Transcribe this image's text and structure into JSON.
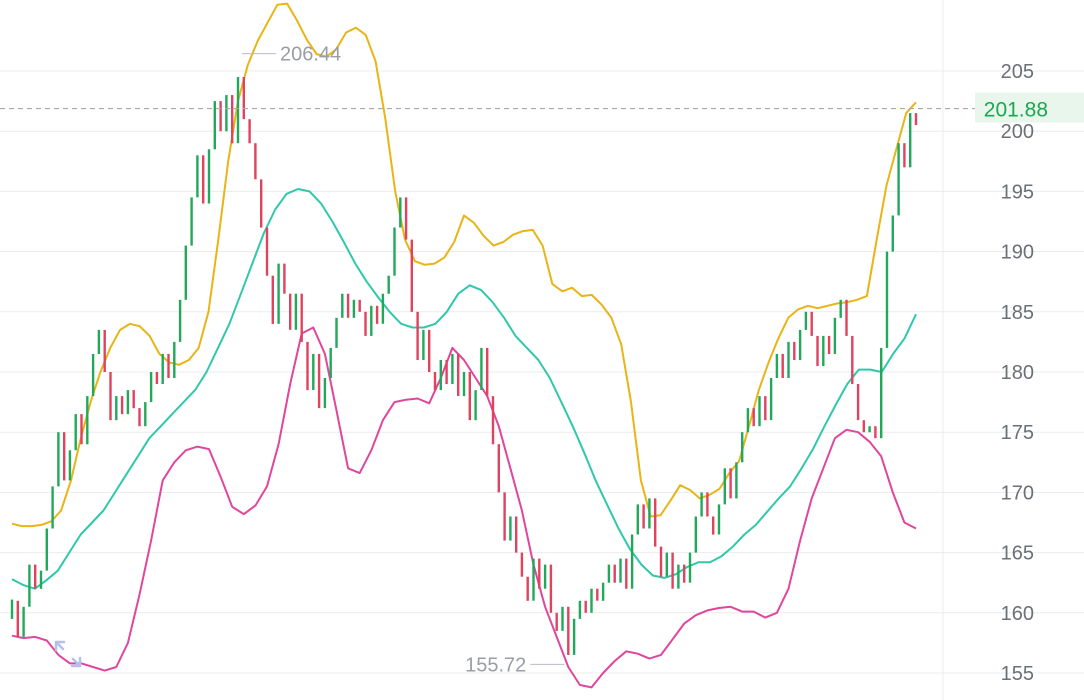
{
  "chart_data": {
    "type": "candlestick",
    "y_axis": {
      "range": [
        153,
        211
      ],
      "ticks": [
        155,
        160,
        165,
        170,
        175,
        180,
        185,
        190,
        195,
        200,
        205
      ],
      "position": "right"
    },
    "grid": true,
    "last_price": {
      "value": 201.88,
      "label": "201.88"
    },
    "annotations": [
      {
        "label": "206.44",
        "value": 206.44,
        "bar_index": 39
      },
      {
        "label": "155.72",
        "value": 155.72,
        "bar_index": 96
      }
    ],
    "candles": [
      {
        "o": 159.5,
        "c": 161.1
      },
      {
        "o": 161.0,
        "c": 158.0
      },
      {
        "o": 158.0,
        "c": 160.5
      },
      {
        "o": 160.5,
        "c": 164.0
      },
      {
        "o": 164.0,
        "c": 162.0
      },
      {
        "o": 162.0,
        "c": 163.5
      },
      {
        "o": 163.5,
        "c": 167.0
      },
      {
        "o": 167.0,
        "c": 170.5
      },
      {
        "o": 170.5,
        "c": 175.0
      },
      {
        "o": 175.0,
        "c": 171.0
      },
      {
        "o": 171.0,
        "c": 173.5
      },
      {
        "o": 173.5,
        "c": 176.5
      },
      {
        "o": 176.5,
        "c": 174.0
      },
      {
        "o": 174.0,
        "c": 178.0
      },
      {
        "o": 178.0,
        "c": 181.5
      },
      {
        "o": 181.5,
        "c": 183.5
      },
      {
        "o": 183.5,
        "c": 180.0
      },
      {
        "o": 180.0,
        "c": 176.0
      },
      {
        "o": 176.0,
        "c": 178.0
      },
      {
        "o": 178.0,
        "c": 176.5
      },
      {
        "o": 176.5,
        "c": 178.5
      },
      {
        "o": 178.5,
        "c": 177.0
      },
      {
        "o": 177.0,
        "c": 175.5
      },
      {
        "o": 175.5,
        "c": 177.5
      },
      {
        "o": 177.5,
        "c": 180.0
      },
      {
        "o": 180.0,
        "c": 179.0
      },
      {
        "o": 179.0,
        "c": 181.5
      },
      {
        "o": 181.5,
        "c": 179.5
      },
      {
        "o": 179.5,
        "c": 182.5
      },
      {
        "o": 182.5,
        "c": 186.0
      },
      {
        "o": 186.0,
        "c": 190.5
      },
      {
        "o": 190.5,
        "c": 194.5
      },
      {
        "o": 194.5,
        "c": 198.0
      },
      {
        "o": 198.0,
        "c": 194.0
      },
      {
        "o": 194.0,
        "c": 198.5
      },
      {
        "o": 198.5,
        "c": 202.5
      },
      {
        "o": 202.5,
        "c": 200.0
      },
      {
        "o": 200.0,
        "c": 203.0
      },
      {
        "o": 203.0,
        "c": 199.0
      },
      {
        "o": 199.0,
        "c": 204.5
      },
      {
        "o": 204.5,
        "c": 201.0
      },
      {
        "o": 201.0,
        "c": 199.0
      },
      {
        "o": 199.0,
        "c": 196.0
      },
      {
        "o": 196.0,
        "c": 192.0
      },
      {
        "o": 192.0,
        "c": 188.0
      },
      {
        "o": 188.0,
        "c": 184.0
      },
      {
        "o": 184.0,
        "c": 189.0
      },
      {
        "o": 189.0,
        "c": 186.5
      },
      {
        "o": 186.5,
        "c": 183.5
      },
      {
        "o": 183.5,
        "c": 186.5
      },
      {
        "o": 186.5,
        "c": 182.5
      },
      {
        "o": 182.5,
        "c": 178.5
      },
      {
        "o": 178.5,
        "c": 181.5
      },
      {
        "o": 181.5,
        "c": 177.0
      },
      {
        "o": 177.0,
        "c": 179.5
      },
      {
        "o": 179.5,
        "c": 182.0
      },
      {
        "o": 182.0,
        "c": 184.5
      },
      {
        "o": 184.5,
        "c": 186.5
      },
      {
        "o": 186.5,
        "c": 184.5
      },
      {
        "o": 184.5,
        "c": 186.0
      },
      {
        "o": 186.0,
        "c": 185.0
      },
      {
        "o": 185.0,
        "c": 183.0
      },
      {
        "o": 183.0,
        "c": 185.5
      },
      {
        "o": 185.5,
        "c": 184.0
      },
      {
        "o": 184.0,
        "c": 186.5
      },
      {
        "o": 186.5,
        "c": 188.0
      },
      {
        "o": 188.0,
        "c": 192.0
      },
      {
        "o": 192.0,
        "c": 194.5
      },
      {
        "o": 194.5,
        "c": 191.0
      },
      {
        "o": 191.0,
        "c": 185.0
      },
      {
        "o": 185.0,
        "c": 181.0
      },
      {
        "o": 181.0,
        "c": 183.5
      },
      {
        "o": 183.5,
        "c": 180.0
      },
      {
        "o": 180.0,
        "c": 178.5
      },
      {
        "o": 178.5,
        "c": 181.0
      },
      {
        "o": 181.0,
        "c": 179.0
      },
      {
        "o": 179.0,
        "c": 181.5
      },
      {
        "o": 181.5,
        "c": 178.0
      },
      {
        "o": 178.0,
        "c": 180.0
      },
      {
        "o": 180.0,
        "c": 176.0
      },
      {
        "o": 176.0,
        "c": 178.5
      },
      {
        "o": 178.5,
        "c": 182.0
      },
      {
        "o": 182.0,
        "c": 178.0
      },
      {
        "o": 178.0,
        "c": 174.0
      },
      {
        "o": 174.0,
        "c": 170.0
      },
      {
        "o": 170.0,
        "c": 166.0
      },
      {
        "o": 166.0,
        "c": 168.0
      },
      {
        "o": 168.0,
        "c": 165.0
      },
      {
        "o": 165.0,
        "c": 163.0
      },
      {
        "o": 163.0,
        "c": 161.0
      },
      {
        "o": 161.0,
        "c": 164.5
      },
      {
        "o": 164.5,
        "c": 162.0
      },
      {
        "o": 162.0,
        "c": 164.0
      },
      {
        "o": 164.0,
        "c": 160.0
      },
      {
        "o": 160.0,
        "c": 158.5
      },
      {
        "o": 158.5,
        "c": 160.5
      },
      {
        "o": 160.5,
        "c": 156.5
      },
      {
        "o": 156.5,
        "c": 159.5
      },
      {
        "o": 159.5,
        "c": 161.0
      },
      {
        "o": 161.0,
        "c": 160.0
      },
      {
        "o": 160.0,
        "c": 162.0
      },
      {
        "o": 162.0,
        "c": 161.0
      },
      {
        "o": 161.0,
        "c": 162.5
      },
      {
        "o": 162.5,
        "c": 164.0
      },
      {
        "o": 164.0,
        "c": 162.5
      },
      {
        "o": 162.5,
        "c": 164.5
      },
      {
        "o": 164.5,
        "c": 162.0
      },
      {
        "o": 162.0,
        "c": 166.5
      },
      {
        "o": 166.5,
        "c": 169.0
      },
      {
        "o": 169.0,
        "c": 167.0
      },
      {
        "o": 167.0,
        "c": 169.5
      },
      {
        "o": 169.5,
        "c": 165.5
      },
      {
        "o": 165.5,
        "c": 163.0
      },
      {
        "o": 163.0,
        "c": 165.0
      },
      {
        "o": 165.0,
        "c": 162.0
      },
      {
        "o": 162.0,
        "c": 164.0
      },
      {
        "o": 164.0,
        "c": 162.5
      },
      {
        "o": 162.5,
        "c": 165.0
      },
      {
        "o": 165.0,
        "c": 168.0
      },
      {
        "o": 168.0,
        "c": 170.0
      },
      {
        "o": 170.0,
        "c": 168.0
      },
      {
        "o": 168.0,
        "c": 166.5
      },
      {
        "o": 166.5,
        "c": 169.0
      },
      {
        "o": 169.0,
        "c": 172.0
      },
      {
        "o": 172.0,
        "c": 169.5
      },
      {
        "o": 169.5,
        "c": 172.5
      },
      {
        "o": 172.5,
        "c": 175.0
      },
      {
        "o": 175.0,
        "c": 177.0
      },
      {
        "o": 177.0,
        "c": 175.5
      },
      {
        "o": 175.5,
        "c": 178.0
      },
      {
        "o": 178.0,
        "c": 176.0
      },
      {
        "o": 176.0,
        "c": 179.5
      },
      {
        "o": 179.5,
        "c": 181.5
      },
      {
        "o": 181.5,
        "c": 179.5
      },
      {
        "o": 179.5,
        "c": 182.5
      },
      {
        "o": 182.5,
        "c": 181.0
      },
      {
        "o": 181.0,
        "c": 183.5
      },
      {
        "o": 183.5,
        "c": 185.0
      },
      {
        "o": 185.0,
        "c": 183.0
      },
      {
        "o": 183.0,
        "c": 180.5
      },
      {
        "o": 180.5,
        "c": 183.0
      },
      {
        "o": 183.0,
        "c": 181.5
      },
      {
        "o": 181.5,
        "c": 184.5
      },
      {
        "o": 184.5,
        "c": 186.0
      },
      {
        "o": 186.0,
        "c": 183.0
      },
      {
        "o": 183.0,
        "c": 179.0
      },
      {
        "o": 179.0,
        "c": 176.0
      },
      {
        "o": 176.0,
        "c": 175.0
      },
      {
        "o": 175.0,
        "c": 175.5
      },
      {
        "o": 175.5,
        "c": 174.5
      },
      {
        "o": 174.5,
        "c": 182.0
      },
      {
        "o": 182.0,
        "c": 190.0
      },
      {
        "o": 190.0,
        "c": 193.0
      },
      {
        "o": 193.0,
        "c": 199.0
      },
      {
        "o": 199.0,
        "c": 197.0
      },
      {
        "o": 197.0,
        "c": 201.5
      },
      {
        "o": 201.5,
        "c": 200.5
      }
    ],
    "series": [
      {
        "role": "upper-band",
        "color": "#e9b416",
        "values": [
          167.4,
          167.2,
          167.2,
          167.3,
          167.6,
          168.5,
          171.0,
          174.5,
          177.5,
          180.0,
          182.0,
          183.5,
          184.0,
          183.8,
          183.0,
          181.5,
          180.8,
          180.6,
          181.0,
          182.0,
          185.0,
          191.0,
          197.5,
          202.5,
          205.5,
          207.5,
          209.0,
          210.5,
          210.6,
          209.2,
          207.6,
          206.4,
          206.2,
          206.8,
          208.2,
          208.6,
          208.0,
          205.8,
          201.0,
          195.0,
          191.0,
          189.2,
          188.9,
          189.0,
          189.5,
          190.8,
          193.0,
          192.4,
          191.3,
          190.5,
          190.8,
          191.4,
          191.7,
          191.8,
          190.5,
          187.3,
          186.7,
          187.0,
          186.3,
          186.4,
          185.6,
          184.5,
          182.3,
          177.5,
          171.0,
          168.0,
          168.1,
          169.3,
          170.6,
          170.2,
          169.5,
          169.8,
          170.3,
          171.6,
          172.6,
          175.5,
          178.5,
          180.8,
          182.8,
          184.5,
          185.2,
          185.5,
          185.3,
          185.5,
          185.7,
          185.8,
          186.0,
          186.3,
          191.0,
          195.5,
          198.5,
          201.5,
          202.4
        ]
      },
      {
        "role": "middle-band",
        "color": "#2fc8aa",
        "values": [
          162.8,
          162.3,
          162.0,
          162.7,
          163.5,
          165.0,
          166.5,
          167.5,
          168.5,
          170.0,
          171.5,
          173.0,
          174.5,
          175.5,
          176.5,
          177.5,
          178.5,
          180.0,
          182.0,
          184.0,
          186.5,
          189.0,
          191.5,
          193.5,
          194.8,
          195.2,
          195.0,
          194.0,
          192.5,
          190.8,
          189.0,
          187.5,
          186.2,
          185.0,
          184.0,
          183.7,
          183.7,
          184.0,
          185.0,
          186.5,
          187.2,
          186.8,
          185.8,
          184.5,
          183.0,
          182.0,
          181.0,
          179.5,
          177.5,
          175.5,
          173.3,
          171.0,
          169.0,
          167.0,
          165.3,
          164.0,
          163.1,
          162.9,
          163.2,
          163.8,
          164.2,
          164.2,
          164.7,
          165.5,
          166.5,
          167.3,
          168.4,
          169.5,
          170.5,
          172.0,
          173.6,
          175.5,
          177.3,
          179.0,
          180.2,
          180.2,
          180.0,
          181.5,
          182.8,
          184.8
        ]
      },
      {
        "role": "lower-band",
        "color": "#e0469c",
        "values": [
          158.1,
          157.9,
          158.0,
          157.7,
          156.5,
          155.8,
          155.8,
          155.5,
          155.2,
          155.5,
          157.5,
          161.5,
          166.0,
          171.0,
          172.5,
          173.5,
          173.8,
          173.6,
          171.3,
          168.8,
          168.2,
          168.9,
          170.5,
          174.0,
          179.0,
          183.2,
          183.7,
          181.5,
          176.8,
          172.0,
          171.6,
          173.5,
          176.0,
          177.5,
          177.7,
          177.8,
          177.4,
          179.5,
          182.0,
          181.0,
          179.5,
          178.0,
          175.5,
          172.0,
          168.5,
          164.0,
          160.5,
          158.0,
          155.5,
          154.0,
          153.8,
          155.0,
          156.0,
          156.8,
          156.6,
          156.2,
          156.5,
          157.8,
          159.1,
          159.8,
          160.2,
          160.4,
          160.5,
          160.1,
          160.1,
          159.6,
          160.0,
          162.0,
          166.0,
          169.5,
          172.0,
          174.5,
          175.2,
          175.0,
          174.2,
          173.0,
          170.0,
          167.5,
          167.0
        ]
      }
    ]
  },
  "colors": {
    "up": "#22a85a",
    "down": "#e0435e",
    "grid": "#ececec",
    "last_price_bg": "#e8f6ec",
    "last_price_line": "#a9a9a9",
    "expand_icon": "#b3c0f0"
  },
  "icons": {
    "expand": "expand-arrows-icon"
  }
}
